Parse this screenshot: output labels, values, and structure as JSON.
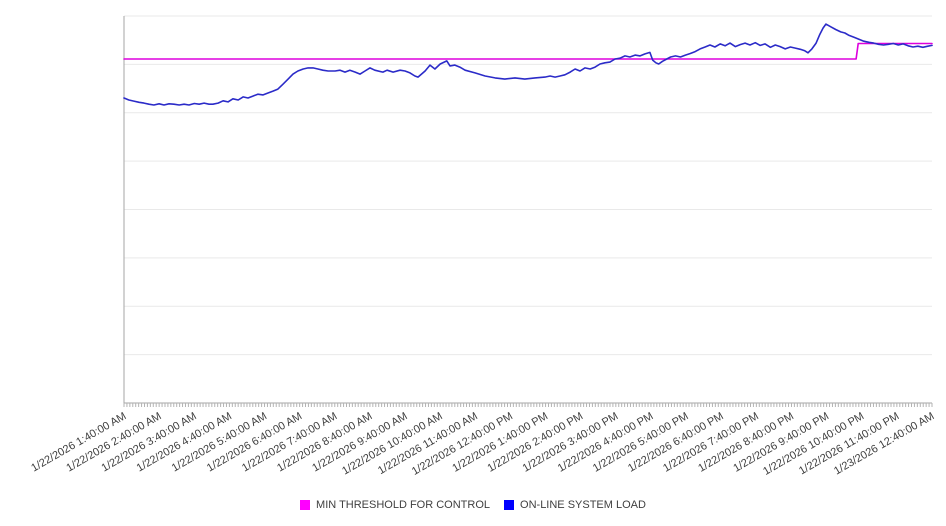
{
  "legend": {
    "items": [
      {
        "label": "MIN THRESHOLD FOR CONTROL",
        "swatch_color": "#ff00ff"
      },
      {
        "label": "ON-LINE SYSTEM LOAD",
        "swatch_color": "#0000ff"
      }
    ]
  },
  "chart_data": {
    "type": "line",
    "x_unit": "hours since 1/22/2026 1:40:00 AM",
    "y_unit": "relative load (no y-axis labels shown); 0-100 = full plot height",
    "xlim": [
      0,
      23
    ],
    "ylim": [
      0,
      100
    ],
    "grid": "horizontal only",
    "legend_position": "bottom-center",
    "x_axis": {
      "rotation_deg": -30,
      "minor_ticks_per_hour": 12,
      "tick_labels": [
        "1/22/2026 1:40:00 AM",
        "1/22/2026 2:40:00 AM",
        "1/22/2026 3:40:00 AM",
        "1/22/2026 4:40:00 AM",
        "1/22/2026 5:40:00 AM",
        "1/22/2026 6:40:00 AM",
        "1/22/2026 7:40:00 AM",
        "1/22/2026 8:40:00 AM",
        "1/22/2026 9:40:00 AM",
        "1/22/2026 10:40:00 AM",
        "1/22/2026 11:40:00 AM",
        "1/22/2026 12:40:00 PM",
        "1/22/2026 1:40:00 PM",
        "1/22/2026 2:40:00 PM",
        "1/22/2026 3:40:00 PM",
        "1/22/2026 4:40:00 PM",
        "1/22/2026 5:40:00 PM",
        "1/22/2026 6:40:00 PM",
        "1/22/2026 7:40:00 PM",
        "1/22/2026 8:40:00 PM",
        "1/22/2026 9:40:00 PM",
        "1/22/2026 10:40:00 PM",
        "1/22/2026 11:40:00 PM",
        "1/23/2026 12:40:00 AM"
      ]
    },
    "y_axis": {
      "visible_labels": false,
      "gridline_rows": 8
    },
    "colors": {
      "gridline": "#e9e9e9",
      "axis_line": "#a6a6a6",
      "minor_tick": "#b3b3b3",
      "tick_label_text": "#3e3e3e"
    },
    "series": [
      {
        "name": "MIN THRESHOLD FOR CONTROL",
        "line_color": "#dd00dd",
        "points": [
          [
            0,
            88.9
          ],
          [
            20.84,
            88.9
          ],
          [
            20.9,
            92.9
          ],
          [
            23,
            92.9
          ]
        ]
      },
      {
        "name": "ON-LINE SYSTEM LOAD",
        "line_color": "#2b2bc8",
        "points": [
          [
            0.0,
            78.8
          ],
          [
            0.14,
            78.3
          ],
          [
            0.28,
            78.0
          ],
          [
            0.43,
            77.7
          ],
          [
            0.57,
            77.5
          ],
          [
            0.71,
            77.2
          ],
          [
            0.85,
            77.0
          ],
          [
            1.0,
            77.3
          ],
          [
            1.14,
            77.0
          ],
          [
            1.28,
            77.3
          ],
          [
            1.42,
            77.2
          ],
          [
            1.57,
            77.0
          ],
          [
            1.71,
            77.2
          ],
          [
            1.85,
            77.0
          ],
          [
            2.0,
            77.4
          ],
          [
            2.14,
            77.2
          ],
          [
            2.28,
            77.5
          ],
          [
            2.42,
            77.2
          ],
          [
            2.53,
            77.2
          ],
          [
            2.68,
            77.5
          ],
          [
            2.82,
            78.1
          ],
          [
            2.96,
            77.8
          ],
          [
            3.1,
            78.6
          ],
          [
            3.25,
            78.3
          ],
          [
            3.39,
            79.1
          ],
          [
            3.53,
            78.8
          ],
          [
            3.67,
            79.3
          ],
          [
            3.81,
            79.8
          ],
          [
            3.96,
            79.6
          ],
          [
            4.1,
            80.1
          ],
          [
            4.24,
            80.6
          ],
          [
            4.38,
            81.1
          ],
          [
            4.53,
            82.4
          ],
          [
            4.67,
            83.7
          ],
          [
            4.81,
            85.0
          ],
          [
            4.95,
            85.8
          ],
          [
            5.1,
            86.3
          ],
          [
            5.24,
            86.6
          ],
          [
            5.38,
            86.6
          ],
          [
            5.52,
            86.3
          ],
          [
            5.66,
            86.0
          ],
          [
            5.81,
            85.8
          ],
          [
            6.01,
            85.8
          ],
          [
            6.15,
            86.0
          ],
          [
            6.29,
            85.5
          ],
          [
            6.43,
            86.0
          ],
          [
            6.58,
            85.5
          ],
          [
            6.72,
            85.0
          ],
          [
            6.86,
            85.8
          ],
          [
            7.0,
            86.6
          ],
          [
            7.14,
            86.0
          ],
          [
            7.37,
            85.5
          ],
          [
            7.49,
            86.0
          ],
          [
            7.66,
            85.5
          ],
          [
            7.86,
            86.0
          ],
          [
            8.0,
            85.8
          ],
          [
            8.14,
            85.3
          ],
          [
            8.28,
            84.5
          ],
          [
            8.37,
            84.2
          ],
          [
            8.57,
            85.8
          ],
          [
            8.71,
            87.3
          ],
          [
            8.85,
            86.3
          ],
          [
            9.0,
            87.6
          ],
          [
            9.19,
            88.4
          ],
          [
            9.28,
            87.1
          ],
          [
            9.42,
            87.3
          ],
          [
            9.56,
            86.8
          ],
          [
            9.71,
            86.0
          ],
          [
            9.99,
            85.3
          ],
          [
            10.28,
            84.5
          ],
          [
            10.56,
            84.0
          ],
          [
            10.84,
            83.7
          ],
          [
            11.13,
            84.0
          ],
          [
            11.41,
            83.7
          ],
          [
            11.7,
            84.0
          ],
          [
            11.98,
            84.2
          ],
          [
            12.13,
            84.5
          ],
          [
            12.27,
            84.2
          ],
          [
            12.41,
            84.5
          ],
          [
            12.55,
            84.8
          ],
          [
            12.7,
            85.5
          ],
          [
            12.84,
            86.3
          ],
          [
            12.98,
            85.8
          ],
          [
            13.12,
            86.6
          ],
          [
            13.27,
            86.3
          ],
          [
            13.41,
            86.8
          ],
          [
            13.55,
            87.6
          ],
          [
            13.69,
            87.9
          ],
          [
            13.83,
            88.1
          ],
          [
            13.98,
            88.9
          ],
          [
            14.12,
            89.1
          ],
          [
            14.26,
            89.7
          ],
          [
            14.4,
            89.4
          ],
          [
            14.55,
            89.9
          ],
          [
            14.69,
            89.7
          ],
          [
            14.83,
            90.2
          ],
          [
            14.97,
            90.6
          ],
          [
            15.05,
            88.6
          ],
          [
            15.14,
            87.9
          ],
          [
            15.22,
            87.6
          ],
          [
            15.33,
            88.3
          ],
          [
            15.45,
            88.9
          ],
          [
            15.56,
            89.4
          ],
          [
            15.7,
            89.7
          ],
          [
            15.84,
            89.4
          ],
          [
            15.98,
            89.9
          ],
          [
            16.12,
            90.3
          ],
          [
            16.26,
            90.8
          ],
          [
            16.4,
            91.5
          ],
          [
            16.54,
            92.0
          ],
          [
            16.68,
            92.5
          ],
          [
            16.82,
            92.0
          ],
          [
            16.97,
            92.8
          ],
          [
            17.11,
            92.3
          ],
          [
            17.25,
            93.0
          ],
          [
            17.4,
            92.1
          ],
          [
            17.54,
            92.6
          ],
          [
            17.68,
            93.0
          ],
          [
            17.82,
            92.5
          ],
          [
            17.97,
            93.1
          ],
          [
            18.11,
            92.4
          ],
          [
            18.25,
            92.8
          ],
          [
            18.4,
            91.9
          ],
          [
            18.54,
            92.5
          ],
          [
            18.68,
            92.1
          ],
          [
            18.82,
            91.5
          ],
          [
            18.97,
            92.0
          ],
          [
            19.11,
            91.7
          ],
          [
            19.25,
            91.4
          ],
          [
            19.38,
            91.0
          ],
          [
            19.47,
            90.5
          ],
          [
            19.58,
            91.5
          ],
          [
            19.7,
            93.0
          ],
          [
            19.81,
            95.3
          ],
          [
            19.9,
            96.9
          ],
          [
            19.98,
            97.9
          ],
          [
            20.12,
            97.2
          ],
          [
            20.26,
            96.5
          ],
          [
            20.4,
            95.9
          ],
          [
            20.52,
            95.6
          ],
          [
            20.64,
            95.0
          ],
          [
            20.78,
            94.5
          ],
          [
            20.92,
            94.0
          ],
          [
            21.06,
            93.5
          ],
          [
            21.2,
            93.2
          ],
          [
            21.34,
            93.0
          ],
          [
            21.48,
            92.7
          ],
          [
            21.62,
            92.5
          ],
          [
            21.76,
            92.7
          ],
          [
            21.9,
            92.9
          ],
          [
            22.04,
            92.5
          ],
          [
            22.18,
            92.8
          ],
          [
            22.32,
            92.3
          ],
          [
            22.46,
            92.0
          ],
          [
            22.6,
            92.2
          ],
          [
            22.74,
            91.9
          ],
          [
            22.88,
            92.2
          ],
          [
            23.0,
            92.4
          ]
        ]
      }
    ]
  }
}
